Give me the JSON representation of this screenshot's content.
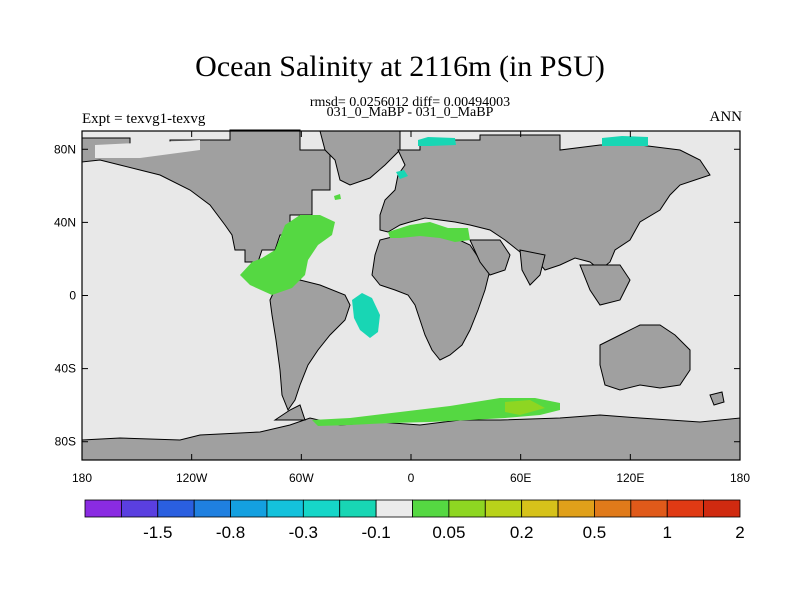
{
  "title": "Ocean Salinity at 2116m (in PSU)",
  "stats": "rmsd= 0.0256012 diff= 0.00494003",
  "case_comparison": "031_0_MaBP - 031_0_MaBP",
  "experiment": "Expt = texvg1-texvg",
  "season": "ANN",
  "map": {
    "lon_ticks": [
      "180",
      "120W",
      "60W",
      "0",
      "60E",
      "120E",
      "180"
    ],
    "lat_ticks": [
      "80N",
      "40N",
      "0",
      "40S",
      "80S"
    ],
    "colors": {
      "ocean_background": "#e8e8e8",
      "land": "#a0a0a0",
      "coastline": "#000000",
      "positive_anomaly": "#55d842",
      "negative_anomaly": "#18d6b4"
    }
  },
  "colorbar": {
    "colors": [
      "#8a2be2",
      "#5a3fe0",
      "#2a5fe0",
      "#1f80e0",
      "#14a0e0",
      "#14c2dc",
      "#16d6c8",
      "#18d6b4",
      "#ebebeb",
      "#55d842",
      "#8ed622",
      "#b9d21a",
      "#d6c21a",
      "#e0a01a",
      "#e07a1a",
      "#e05a1a",
      "#e03a14",
      "#d02a10"
    ],
    "labels": [
      "-1.5",
      "-0.8",
      "-0.3",
      "-0.1",
      "0.05",
      "0.2",
      "0.5",
      "1",
      "2"
    ]
  }
}
